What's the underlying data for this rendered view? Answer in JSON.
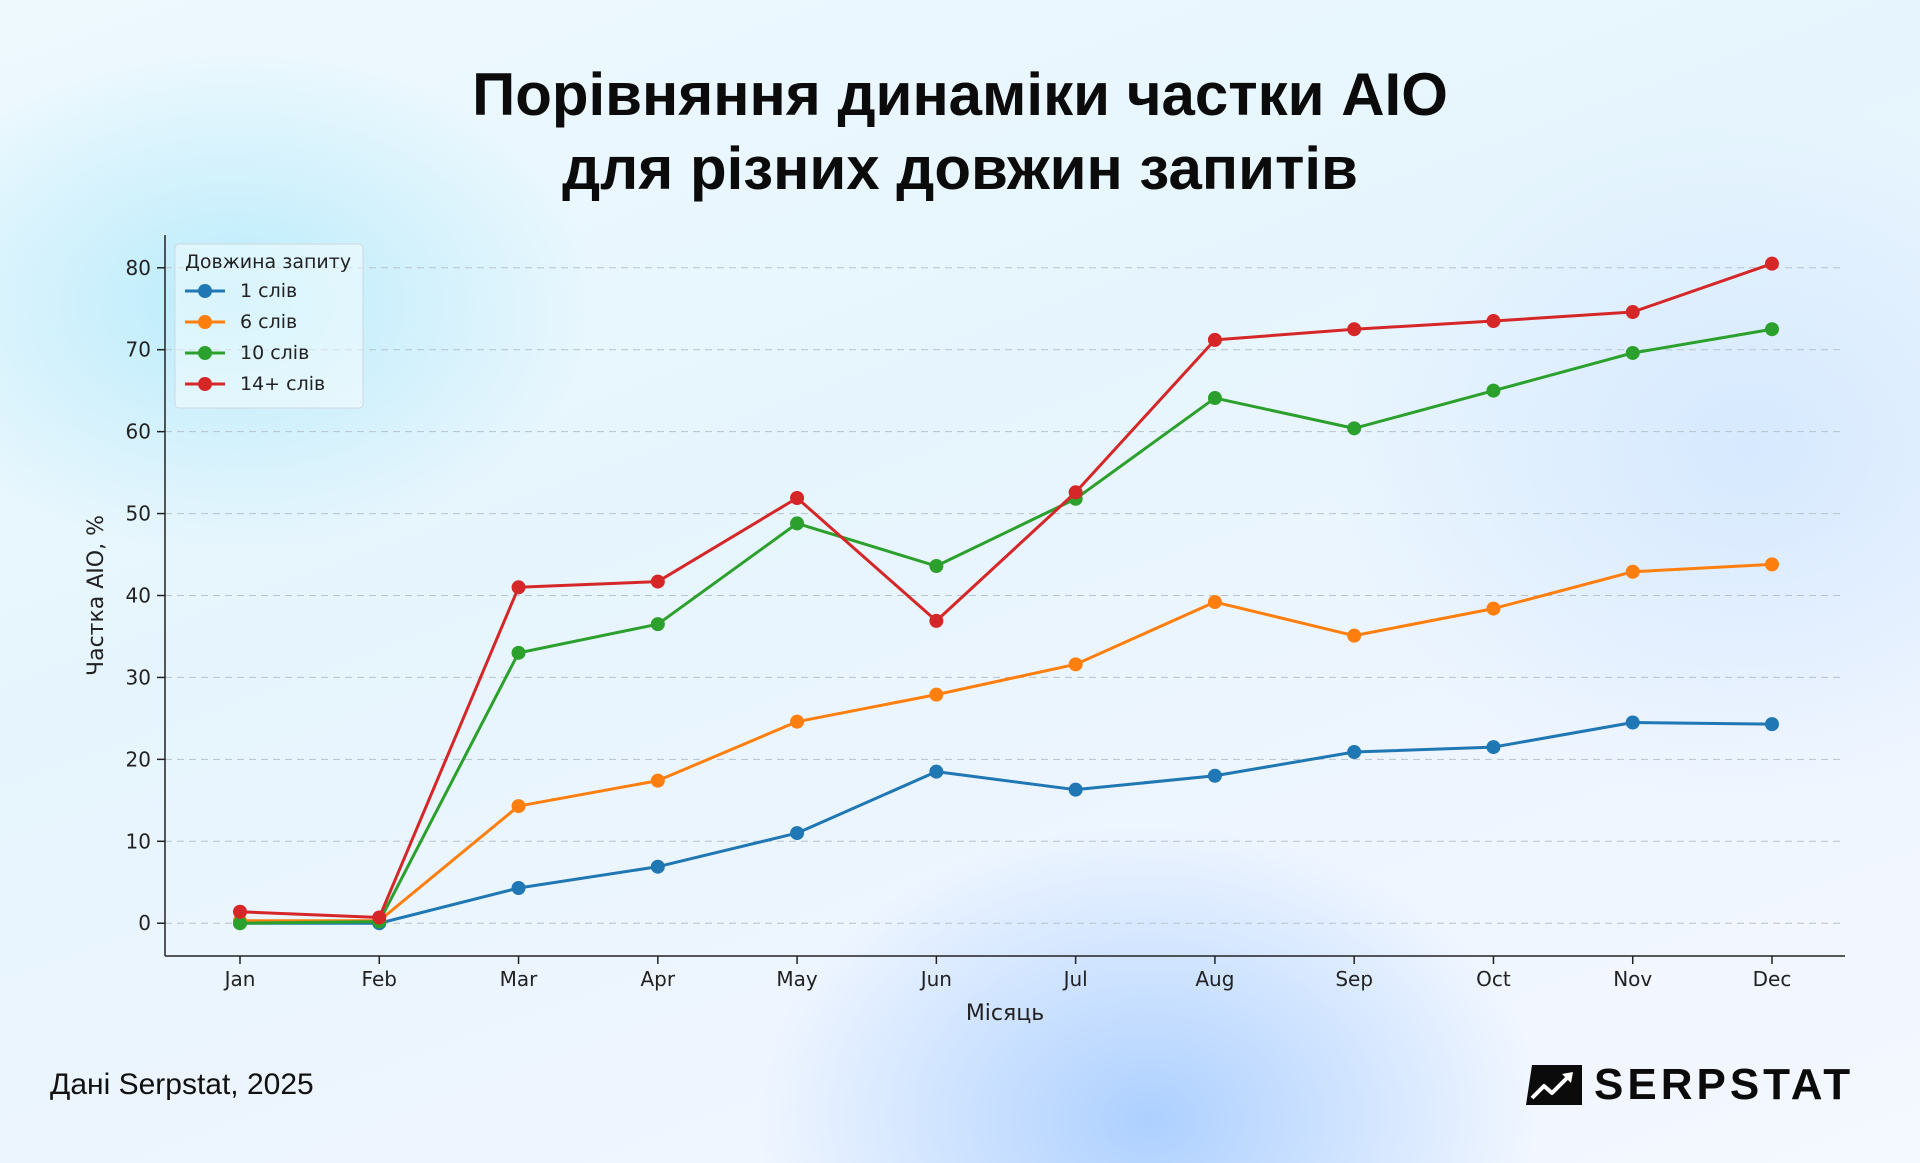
{
  "header": {
    "title_line1": "Порівняння динаміки частки AIO",
    "title_line2": "для різних довжин запитів"
  },
  "footer": {
    "source": "Дані Serpstat, 2025",
    "brand": "SERPSTAT",
    "brand_icon": "serpstat-logo-icon"
  },
  "chart_data": {
    "type": "line",
    "title": "Порівняння динаміки частки AIO для різних довжин запитів",
    "xlabel": "Місяць",
    "ylabel": "Частка AIO, %",
    "categories": [
      "Jan",
      "Feb",
      "Mar",
      "Apr",
      "May",
      "Jun",
      "Jul",
      "Aug",
      "Sep",
      "Oct",
      "Nov",
      "Dec"
    ],
    "ylim": [
      -4,
      84
    ],
    "yticks": [
      0,
      10,
      20,
      30,
      40,
      50,
      60,
      70,
      80
    ],
    "grid": "horizontal-dashed",
    "legend": {
      "title": "Довжина запиту",
      "placement": "top-left"
    },
    "series": [
      {
        "name": "1 слів",
        "color": "#1f77b4",
        "values": [
          0,
          0,
          4.3,
          6.9,
          11.0,
          18.5,
          16.3,
          18.0,
          20.9,
          21.5,
          24.5,
          24.3
        ]
      },
      {
        "name": "6 слів",
        "color": "#ff7f0e",
        "values": [
          0.3,
          0.3,
          14.3,
          17.4,
          24.6,
          27.9,
          31.6,
          39.2,
          35.1,
          38.4,
          42.9,
          43.8
        ]
      },
      {
        "name": "10 слів",
        "color": "#2ca02c",
        "values": [
          0,
          0.2,
          33.0,
          36.5,
          48.8,
          43.6,
          51.8,
          64.1,
          60.4,
          65.0,
          69.6,
          72.5
        ]
      },
      {
        "name": "14+ слів",
        "color": "#d62728",
        "values": [
          1.4,
          0.7,
          41.0,
          41.7,
          51.9,
          36.9,
          52.6,
          71.2,
          72.5,
          73.5,
          74.6,
          80.5
        ]
      }
    ]
  }
}
